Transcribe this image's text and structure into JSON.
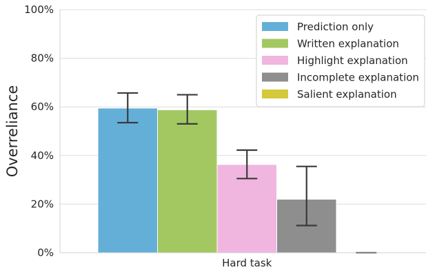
{
  "chart_data": {
    "type": "bar",
    "categories": [
      "Hard task"
    ],
    "ylabel": "Overreliance",
    "xlabel": "",
    "title": "",
    "ylim": [
      0,
      100
    ],
    "y_ticks": [
      "0%",
      "20%",
      "40%",
      "60%",
      "80%",
      "100%"
    ],
    "y_tick_values": [
      0,
      20,
      40,
      60,
      80,
      100
    ],
    "grid": "horizontal",
    "legend_position": "top-right",
    "series": [
      {
        "name": "Prediction only",
        "color": "#64afd8",
        "values": [
          59.5
        ],
        "error_low": [
          53.5
        ],
        "error_high": [
          65.7
        ]
      },
      {
        "name": "Written explanation",
        "color": "#a3c862",
        "values": [
          58.8
        ],
        "error_low": [
          53.0
        ],
        "error_high": [
          65.0
        ]
      },
      {
        "name": "Highlight explanation",
        "color": "#f0b6df",
        "values": [
          36.3
        ],
        "error_low": [
          30.5
        ],
        "error_high": [
          42.2
        ]
      },
      {
        "name": "Incomplete explanation",
        "color": "#8e8e8e",
        "values": [
          22.0
        ],
        "error_low": [
          11.2
        ],
        "error_high": [
          35.5
        ]
      },
      {
        "name": "Salient explanation",
        "color": "#d4c93a",
        "values": [
          0
        ],
        "error_low": [
          0
        ],
        "error_high": [
          0
        ]
      }
    ]
  }
}
